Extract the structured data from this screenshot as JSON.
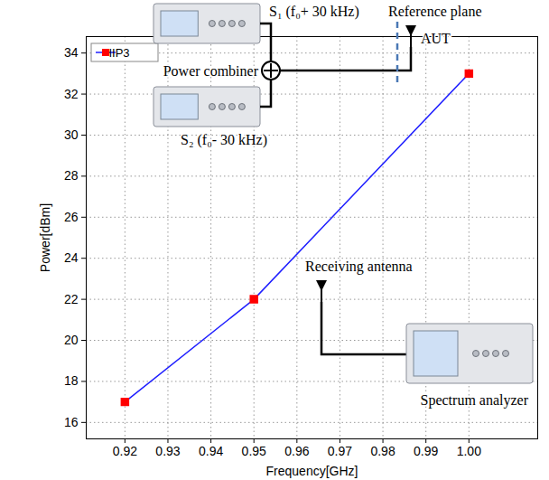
{
  "chart_data": {
    "type": "line",
    "x_label": "Frequency[GHz]",
    "y_label": "Power[dBm]",
    "x": [
      0.92,
      0.95,
      1.0
    ],
    "series": [
      {
        "name": "IIP3",
        "color": "#1f1fff",
        "marker": "square",
        "line_style": "solid",
        "values": [
          17,
          22,
          33
        ]
      }
    ],
    "xlim": [
      0.911,
      1.016
    ],
    "xticks": [
      0.92,
      0.93,
      0.94,
      0.95,
      0.96,
      0.97,
      0.98,
      0.99,
      {
        "value": 1,
        "label": "1.00"
      }
    ],
    "ylim": [
      15.2,
      34.8
    ],
    "yticks": [
      16,
      18,
      20,
      22,
      24,
      26,
      28,
      30,
      32,
      34
    ],
    "grid": true,
    "legend": "top-left",
    "annotations": [
      "S₁ (f₀+ 30 kHz)",
      "Reference plane",
      "AUT",
      "Power combiner",
      "S₂ (f₀- 30 kHz)",
      "Receiving antenna",
      "Spectrum analyzer"
    ]
  }
}
